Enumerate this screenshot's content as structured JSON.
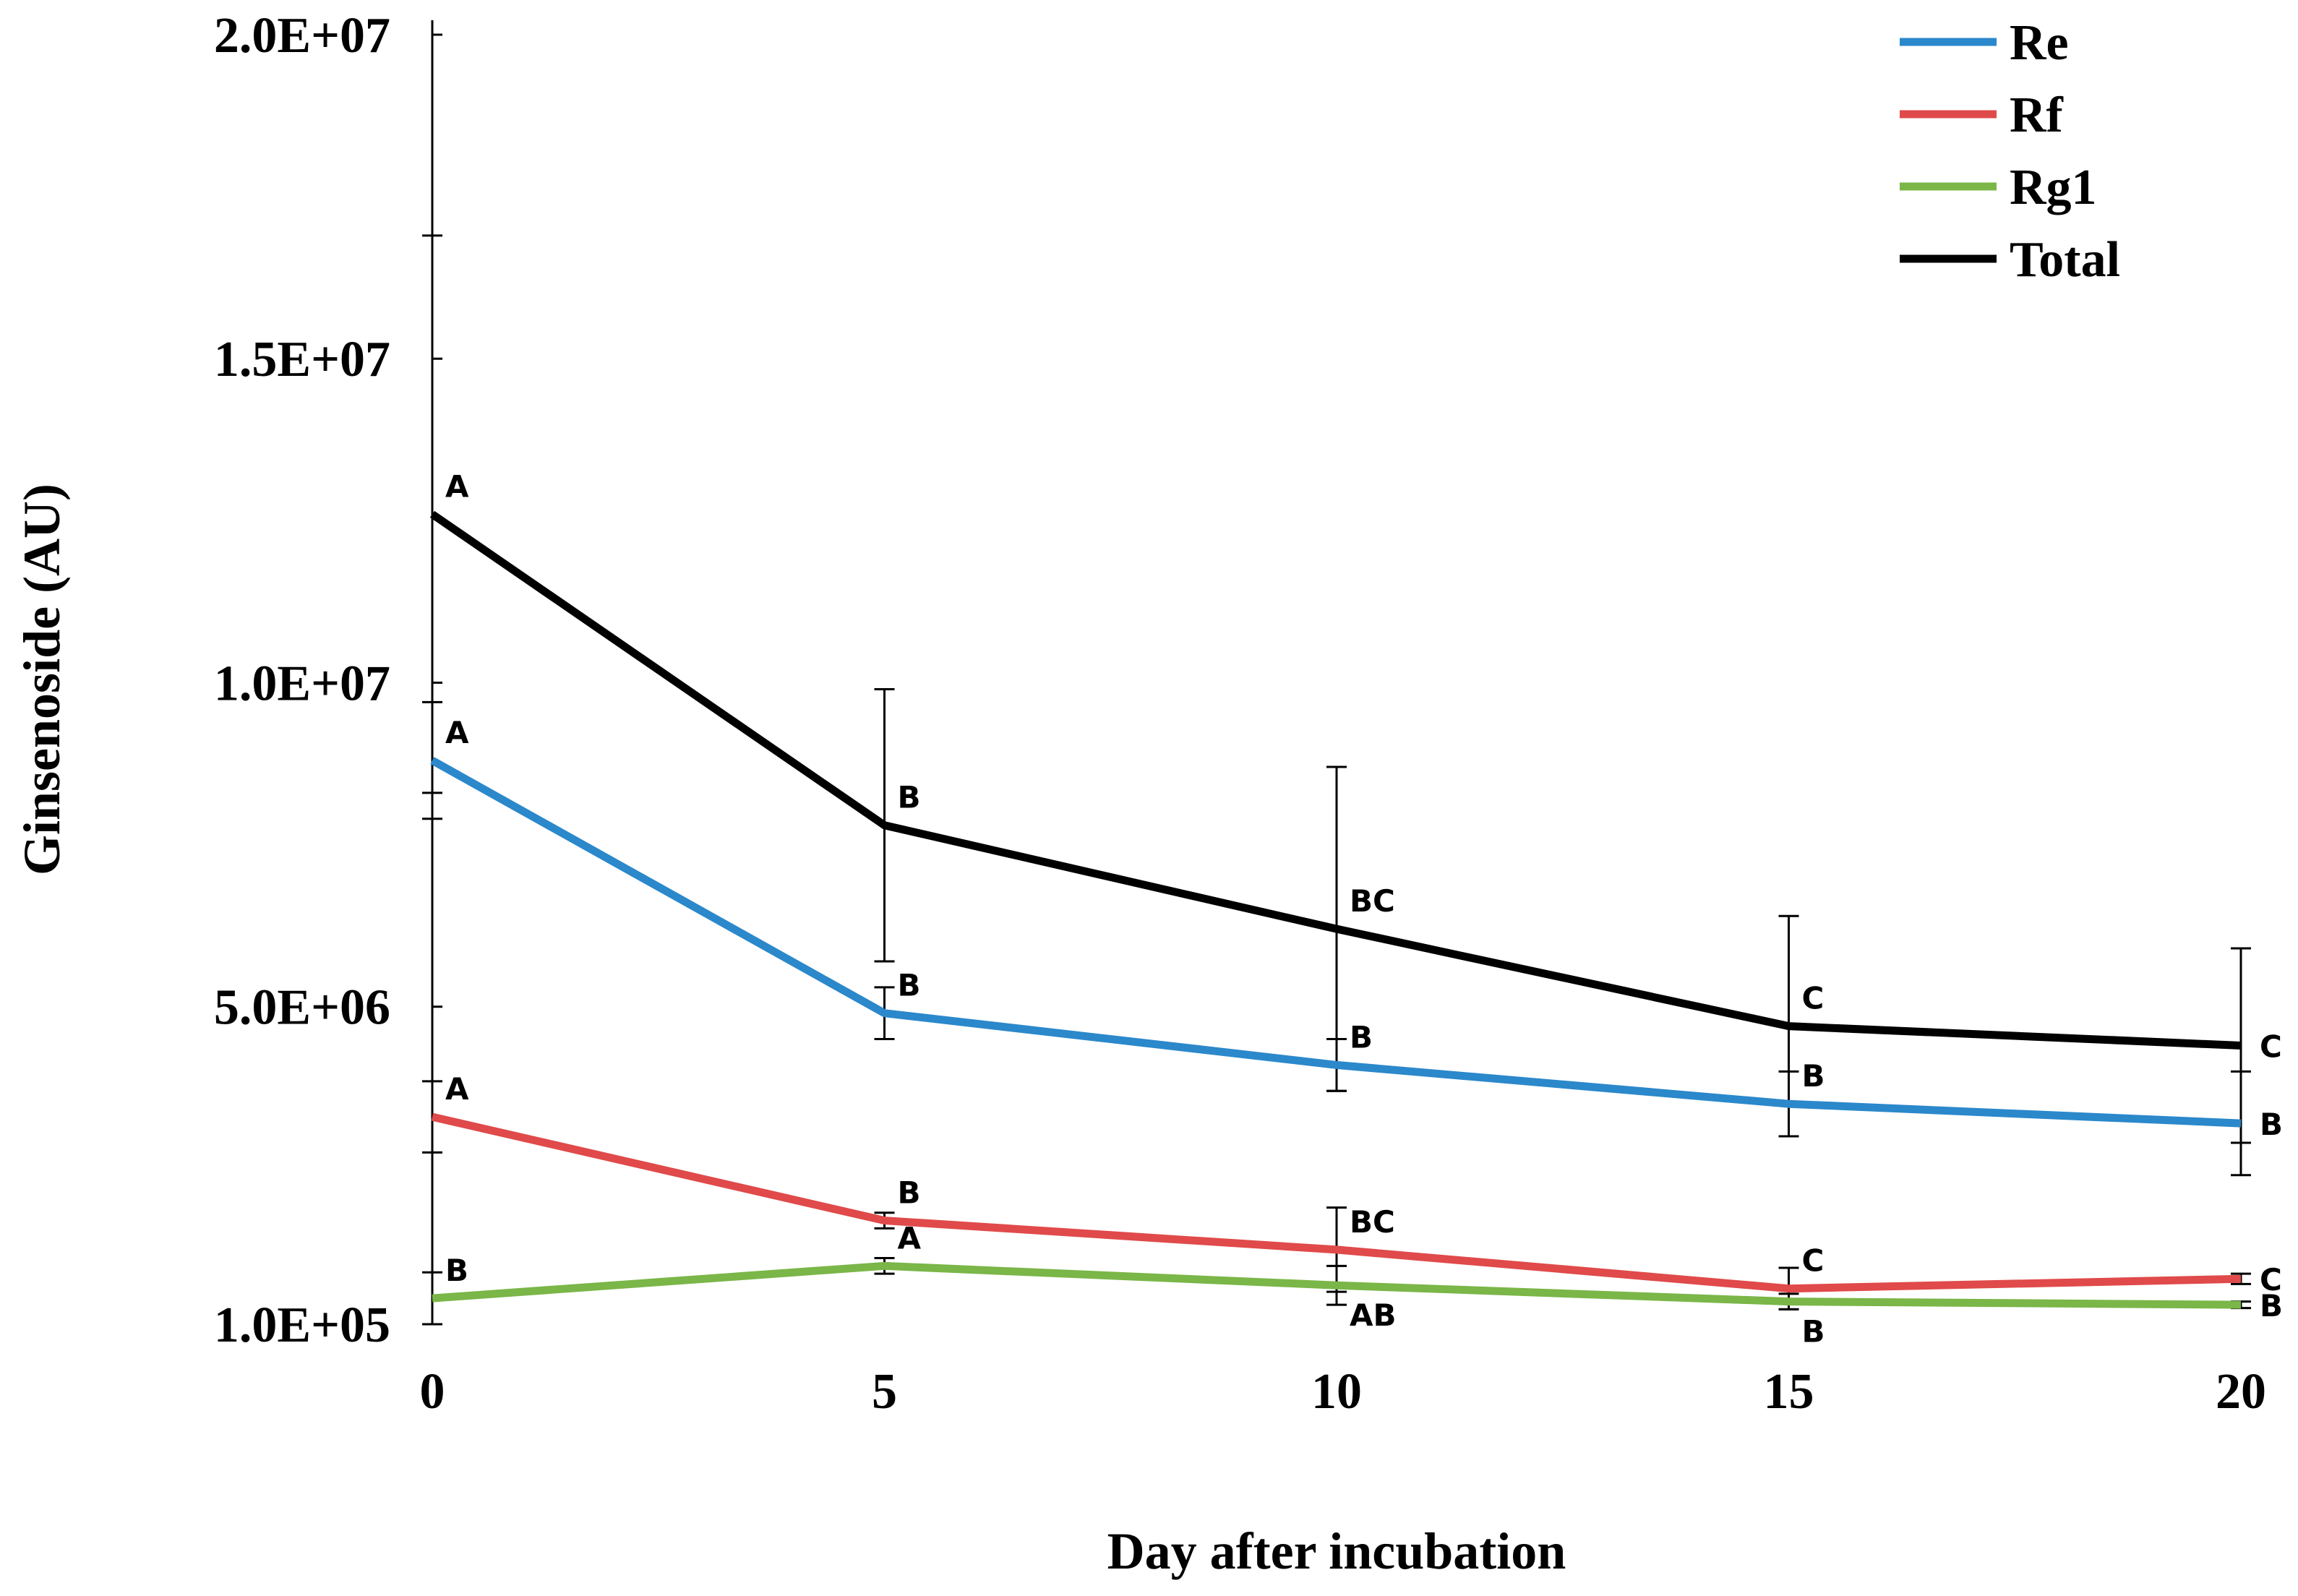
{
  "chart_data": {
    "type": "line",
    "title": "",
    "xlabel": "Day after incubation",
    "ylabel": "Ginsenoside (AU)",
    "x": [
      0,
      5,
      10,
      15,
      20
    ],
    "xlim": [
      0,
      20
    ],
    "ylim": [
      100000,
      20000000
    ],
    "x_ticks": [
      {
        "value": 0,
        "label": "0"
      },
      {
        "value": 5,
        "label": "5"
      },
      {
        "value": 10,
        "label": "10"
      },
      {
        "value": 15,
        "label": "15"
      },
      {
        "value": 20,
        "label": "20"
      }
    ],
    "y_ticks": [
      {
        "value": 100000,
        "label": "1.0E+05"
      },
      {
        "value": 5000000,
        "label": "5.0E+06"
      },
      {
        "value": 10000000,
        "label": "1.0E+07"
      },
      {
        "value": 15000000,
        "label": "1.5E+07"
      },
      {
        "value": 20000000,
        "label": "2.0E+07"
      }
    ],
    "grid": false,
    "legend_position": "top-right",
    "series": [
      {
        "name": "Re",
        "color": "#2b88cb",
        "values": [
          8800000,
          4900000,
          4100000,
          3500000,
          3200000
        ],
        "errors": [
          900000,
          400000,
          400000,
          500000,
          800000
        ],
        "labels": [
          "A",
          "B",
          "B",
          "B",
          "B"
        ],
        "label_side": [
          "above",
          "above",
          "above",
          "above",
          "right"
        ]
      },
      {
        "name": "Rf",
        "color": "#e04a4a",
        "values": [
          3300000,
          1700000,
          1250000,
          650000,
          800000
        ],
        "errors": [
          550000,
          120000,
          650000,
          320000,
          80000
        ],
        "labels": [
          "A",
          "B",
          "BC",
          "C",
          "C"
        ],
        "label_side": [
          "above",
          "above",
          "above",
          "above",
          "right"
        ]
      },
      {
        "name": "Rg1",
        "color": "#7ab648",
        "values": [
          500000,
          1000000,
          700000,
          450000,
          400000
        ],
        "errors": [
          400000,
          120000,
          300000,
          120000,
          50000
        ],
        "labels": [
          "B",
          "A",
          "AB",
          "B",
          "B"
        ],
        "label_side": [
          "above",
          "above",
          "below",
          "below",
          "right"
        ]
      },
      {
        "name": "Total",
        "color": "#000000",
        "values": [
          12600000,
          7800000,
          6200000,
          4700000,
          4400000
        ],
        "errors": [
          4300000,
          2100000,
          2500000,
          1700000,
          1500000
        ],
        "labels": [
          "A",
          "B",
          "BC",
          "C",
          "C"
        ],
        "label_side": [
          "above",
          "above",
          "above",
          "above",
          "right"
        ]
      }
    ]
  }
}
